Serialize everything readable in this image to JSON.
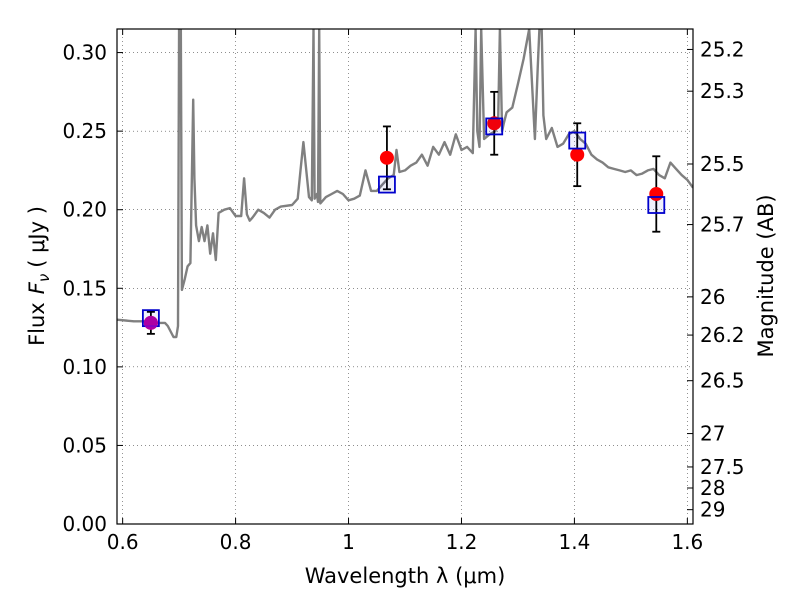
{
  "chart_data": {
    "type": "line",
    "title": "",
    "xlabel": "Wavelength  λ (μm)",
    "ylabel": "Flux  F_ν  ( μJy )",
    "ylabel_parts": {
      "prefix": "Flux",
      "symbol": "F",
      "subscript": "ν",
      "suffix": "( μJy )"
    },
    "y2label": "Magnitude (AB)",
    "xlim": [
      0.59,
      1.61
    ],
    "ylim": [
      0.0,
      0.315
    ],
    "grid": true,
    "xticks": [
      {
        "v": 0.6,
        "label": "0.6"
      },
      {
        "v": 0.8,
        "label": "0.8"
      },
      {
        "v": 1.0,
        "label": "1"
      },
      {
        "v": 1.2,
        "label": "1.2"
      },
      {
        "v": 1.4,
        "label": "1.4"
      },
      {
        "v": 1.6,
        "label": "1.6"
      }
    ],
    "yticks": [
      {
        "v": 0.0,
        "label": "0.00"
      },
      {
        "v": 0.05,
        "label": "0.05"
      },
      {
        "v": 0.1,
        "label": "0.10"
      },
      {
        "v": 0.15,
        "label": "0.15"
      },
      {
        "v": 0.2,
        "label": "0.20"
      },
      {
        "v": 0.25,
        "label": "0.25"
      },
      {
        "v": 0.3,
        "label": "0.30"
      }
    ],
    "mag_ticks": [
      "25.2",
      "25.3",
      "25.5",
      "25.7",
      "26",
      "26.2",
      "26.5",
      "27",
      "27.5",
      "28",
      "29"
    ],
    "model_color": "#808080",
    "model_spectrum": {
      "x": [
        0.59,
        0.62,
        0.64,
        0.66,
        0.675,
        0.68,
        0.69,
        0.695,
        0.698,
        0.7,
        0.703,
        0.705,
        0.71,
        0.715,
        0.72,
        0.725,
        0.727,
        0.73,
        0.735,
        0.74,
        0.745,
        0.75,
        0.755,
        0.76,
        0.765,
        0.77,
        0.78,
        0.79,
        0.8,
        0.81,
        0.815,
        0.82,
        0.825,
        0.83,
        0.84,
        0.85,
        0.86,
        0.87,
        0.88,
        0.9,
        0.91,
        0.915,
        0.92,
        0.93,
        0.935,
        0.938,
        0.94,
        0.944,
        0.946,
        0.948,
        0.95,
        0.96,
        0.97,
        0.98,
        0.99,
        1.0,
        1.01,
        1.02,
        1.03,
        1.04,
        1.05,
        1.06,
        1.07,
        1.08,
        1.085,
        1.09,
        1.1,
        1.11,
        1.12,
        1.13,
        1.14,
        1.15,
        1.16,
        1.17,
        1.18,
        1.19,
        1.2,
        1.21,
        1.22,
        1.225,
        1.228,
        1.232,
        1.235,
        1.24,
        1.25,
        1.26,
        1.265,
        1.268,
        1.272,
        1.275,
        1.28,
        1.29,
        1.3,
        1.31,
        1.32,
        1.33,
        1.335,
        1.338,
        1.342,
        1.345,
        1.35,
        1.36,
        1.37,
        1.38,
        1.39,
        1.4,
        1.41,
        1.42,
        1.43,
        1.44,
        1.45,
        1.46,
        1.47,
        1.48,
        1.49,
        1.5,
        1.51,
        1.52,
        1.53,
        1.54,
        1.55,
        1.56,
        1.57,
        1.58,
        1.59,
        1.6,
        1.61
      ],
      "y": [
        0.13,
        0.129,
        0.129,
        0.128,
        0.128,
        0.126,
        0.119,
        0.119,
        0.126,
        0.32,
        0.32,
        0.149,
        0.156,
        0.164,
        0.166,
        0.27,
        0.22,
        0.19,
        0.18,
        0.189,
        0.18,
        0.19,
        0.172,
        0.185,
        0.168,
        0.198,
        0.2,
        0.201,
        0.196,
        0.196,
        0.22,
        0.197,
        0.193,
        0.195,
        0.2,
        0.198,
        0.195,
        0.2,
        0.202,
        0.203,
        0.207,
        0.225,
        0.243,
        0.208,
        0.206,
        0.315,
        0.207,
        0.21,
        0.205,
        0.315,
        0.204,
        0.208,
        0.21,
        0.212,
        0.21,
        0.206,
        0.207,
        0.209,
        0.225,
        0.212,
        0.212,
        0.216,
        0.22,
        0.222,
        0.238,
        0.224,
        0.225,
        0.228,
        0.23,
        0.235,
        0.228,
        0.24,
        0.235,
        0.243,
        0.235,
        0.248,
        0.238,
        0.24,
        0.236,
        0.315,
        0.25,
        0.24,
        0.315,
        0.245,
        0.248,
        0.25,
        0.258,
        0.315,
        0.25,
        0.255,
        0.262,
        0.265,
        0.28,
        0.296,
        0.315,
        0.245,
        0.29,
        0.315,
        0.315,
        0.26,
        0.245,
        0.252,
        0.24,
        0.242,
        0.248,
        0.25,
        0.245,
        0.242,
        0.235,
        0.232,
        0.23,
        0.227,
        0.226,
        0.225,
        0.224,
        0.225,
        0.222,
        0.223,
        0.225,
        0.226,
        0.222,
        0.22,
        0.23,
        0.226,
        0.222,
        0.219,
        0.214
      ]
    },
    "observed": {
      "color": "#ff0000",
      "x": [
        0.65,
        1.068,
        1.258,
        1.405,
        1.545
      ],
      "y": [
        0.128,
        0.233,
        0.255,
        0.235,
        0.21
      ],
      "err": [
        0.007,
        0.02,
        0.02,
        0.02,
        0.024
      ]
    },
    "model_photometry": {
      "color": "#0000cc",
      "x": [
        0.65,
        1.068,
        1.258,
        1.405,
        1.545
      ],
      "y": [
        0.131,
        0.216,
        0.253,
        0.244,
        0.203
      ]
    }
  }
}
